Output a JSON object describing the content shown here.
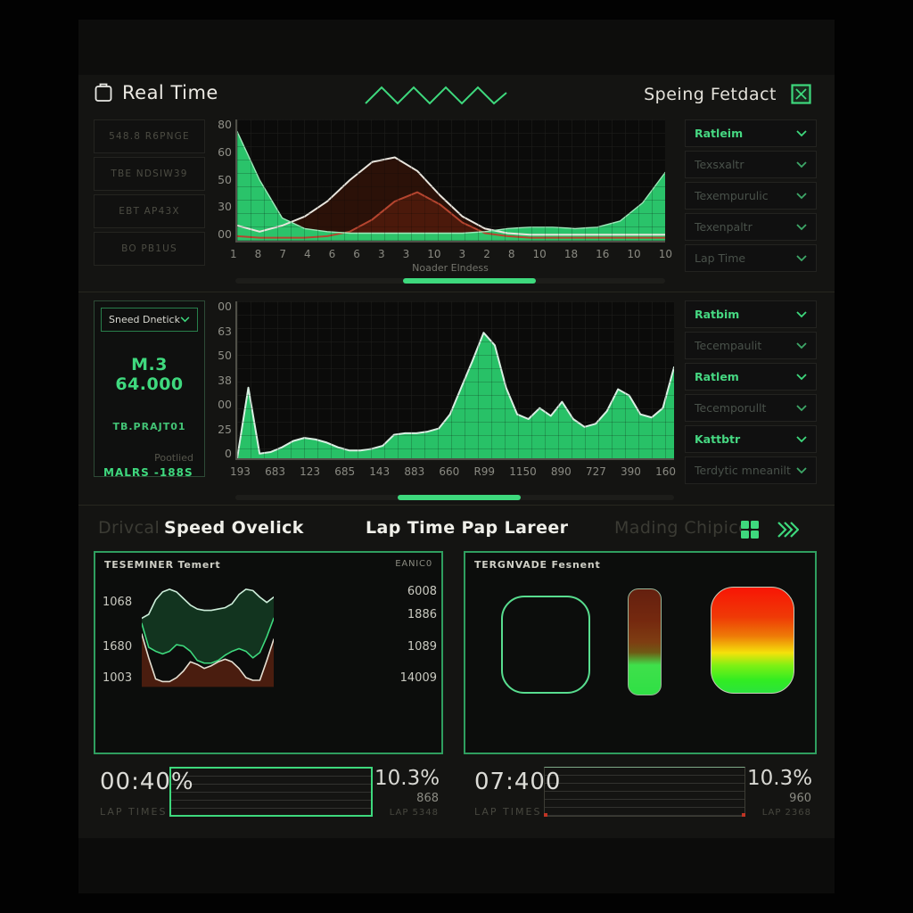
{
  "header": {
    "title": "Real Time",
    "right_label": "Speing Fetdact"
  },
  "colors": {
    "accent_green": "#3ed97d",
    "chart_green": "#2bd06f",
    "dim_text": "#4c4c43",
    "white_text": "#e9e9e4",
    "red_line": "#b5452f",
    "panel_bg": "#141412"
  },
  "sidebar_left": {
    "buttons": [
      "548.8 R6PNGE",
      "TBE NDSIW39",
      "EBT AP43X",
      "BO PB1US"
    ]
  },
  "dropdowns_top_right": [
    {
      "label": "Ratleim",
      "active": true
    },
    {
      "label": "Texsxaltr",
      "active": false
    },
    {
      "label": "Texempurulic",
      "active": false
    },
    {
      "label": "Texenpaltr",
      "active": false
    },
    {
      "label": "Lap Time",
      "active": false
    }
  ],
  "dropdowns_mid_right": [
    {
      "label": "Ratbim",
      "active": true
    },
    {
      "label": "Tecempaulit",
      "active": false
    },
    {
      "label": "Ratlem",
      "active": true
    },
    {
      "label": "Tecemporullt",
      "active": false
    },
    {
      "label": "Kattbtr",
      "active": true
    },
    {
      "label": "Terdytic mneanilt",
      "active": false
    }
  ],
  "mid_left_panel": {
    "dropdown": "Sneed Dnetick",
    "value_main": "M.3 64.000",
    "value_sub": "TB.PRAJT01",
    "label_dim": "Pootlied",
    "value_bottom": "MALRS -188S"
  },
  "section_tabs": [
    {
      "label": "Drivcal",
      "active": false
    },
    {
      "label": "Speed Ovelick",
      "active": true
    },
    {
      "label": "Lap Time Pap Lareer",
      "active": true
    },
    {
      "label": "Mading Chipice",
      "active": false
    }
  ],
  "bottom_left_panel": {
    "title": "TESEMINER Temert",
    "title_right": "EANIC0",
    "left_labels": [
      "1068",
      "1680",
      "1003"
    ],
    "right_labels": [
      "6008",
      "1886",
      "1089",
      "14009"
    ]
  },
  "bottom_right_panel": {
    "title": "TERGNVADE Fesnent"
  },
  "stats": {
    "left": {
      "time": "00:40%",
      "label": "LAP TIMES",
      "pct": "10.3%",
      "sub": "868",
      "sub2": "LAP 5348"
    },
    "right": {
      "time": "07:400",
      "label": "LAP TIMES",
      "pct": "10.3%",
      "sub": "960",
      "sub2": "LAP 2368"
    }
  },
  "chart_data": [
    {
      "type": "area",
      "title": "",
      "xlabel": "Noader Elndess",
      "ylabel": "",
      "ylim": [
        0,
        80
      ],
      "grid": true,
      "y_ticks": [
        "80",
        "60",
        "50",
        "30",
        "00"
      ],
      "x_ticks": [
        "1",
        "8",
        "7",
        "4",
        "6",
        "6",
        "3",
        "3",
        "10",
        "3",
        "2",
        "8",
        "10",
        "18",
        "16",
        "10",
        "10"
      ],
      "series": [
        {
          "name": "pace-line",
          "color": "#e9e6de",
          "width": 2,
          "fill": "rgba(48,18,8,0.88)",
          "values": [
            10,
            6,
            10,
            16,
            26,
            40,
            52,
            55,
            46,
            30,
            16,
            8,
            5,
            4,
            4,
            4,
            4,
            4,
            4,
            4
          ]
        },
        {
          "name": "delta-line",
          "color": "#b5452f",
          "width": 2,
          "fill": "rgba(150,45,20,0.30)",
          "values": [
            3,
            2,
            2,
            2,
            3,
            6,
            14,
            26,
            32,
            24,
            12,
            5,
            3,
            2,
            2,
            2,
            2,
            2,
            2,
            2
          ]
        },
        {
          "name": "speed-area",
          "color": "#9fe8ba",
          "width": 1.4,
          "fill": "rgba(44,205,112,0.95)",
          "values": [
            72,
            40,
            15,
            8,
            6,
            5,
            5,
            5,
            5,
            5,
            5,
            6,
            8,
            9,
            9,
            8,
            9,
            13,
            25,
            45
          ]
        }
      ]
    },
    {
      "type": "area",
      "title": "",
      "xlabel": "",
      "ylabel": "",
      "ylim": [
        0,
        100
      ],
      "grid": true,
      "y_ticks": [
        "00",
        "63",
        "50",
        "38",
        "00",
        "25",
        "0"
      ],
      "x_ticks": [
        "193",
        "683",
        "123",
        "685",
        "143",
        "883",
        "660",
        "R99",
        "1150",
        "890",
        "727",
        "390",
        "160"
      ],
      "series": [
        {
          "name": "speed-trace",
          "color": "#d9efe2",
          "width": 2,
          "fill": "rgba(43,208,111,0.93)",
          "values": [
            0,
            45,
            3,
            4,
            7,
            11,
            13,
            12,
            10,
            7,
            5,
            5,
            6,
            8,
            15,
            16,
            16,
            17,
            19,
            28,
            45,
            62,
            80,
            72,
            45,
            28,
            25,
            32,
            27,
            36,
            25,
            20,
            22,
            30,
            44,
            40,
            28,
            26,
            32,
            58
          ]
        }
      ]
    },
    {
      "type": "band",
      "title": "TESEMINER Temert",
      "ylim": [
        0,
        100
      ],
      "grid": true,
      "baseline": 20,
      "band_fill": "rgba(40,190,100,0.22)",
      "white_fill": "rgba(135,45,18,0.50)",
      "series": [
        {
          "name": "band-top",
          "color": "#cdeeda",
          "values": [
            72,
            75,
            86,
            92,
            94,
            92,
            87,
            82,
            79,
            78,
            78,
            79,
            80,
            83,
            90,
            94,
            93,
            88,
            84,
            88
          ]
        },
        {
          "name": "band-bottom",
          "color": "#3ed97d",
          "values": [
            68,
            50,
            47,
            45,
            47,
            52,
            51,
            47,
            40,
            38,
            38,
            40,
            44,
            47,
            49,
            47,
            42,
            46,
            58,
            72
          ]
        },
        {
          "name": "temp-line",
          "color": "#e6e0d2",
          "values": [
            60,
            42,
            26,
            24,
            24,
            27,
            32,
            39,
            37,
            34,
            36,
            39,
            41,
            39,
            34,
            27,
            25,
            25,
            40,
            56
          ]
        }
      ]
    }
  ]
}
